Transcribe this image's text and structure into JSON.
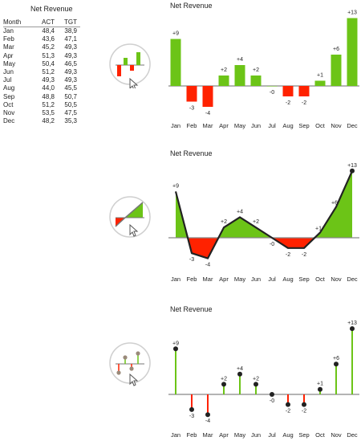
{
  "table": {
    "title": "Net Revenue",
    "headers": [
      "Month",
      "ACT",
      "TGT"
    ],
    "rows": [
      {
        "month": "Jan",
        "act": "48,4",
        "tgt": "38,9"
      },
      {
        "month": "Feb",
        "act": "43,6",
        "tgt": "47,1"
      },
      {
        "month": "Mar",
        "act": "45,2",
        "tgt": "49,3"
      },
      {
        "month": "Apr",
        "act": "51,3",
        "tgt": "49,3"
      },
      {
        "month": "May",
        "act": "50,4",
        "tgt": "46,5"
      },
      {
        "month": "Jun",
        "act": "51,2",
        "tgt": "49,3"
      },
      {
        "month": "Jul",
        "act": "49,3",
        "tgt": "49,3"
      },
      {
        "month": "Aug",
        "act": "44,0",
        "tgt": "45,5"
      },
      {
        "month": "Sep",
        "act": "48,8",
        "tgt": "50,7"
      },
      {
        "month": "Oct",
        "act": "51,2",
        "tgt": "50,5"
      },
      {
        "month": "Nov",
        "act": "53,5",
        "tgt": "47,5"
      },
      {
        "month": "Dec",
        "act": "48,2",
        "tgt": "35,3"
      }
    ]
  },
  "colors": {
    "positive": "#6cc417",
    "negative": "#ff2200",
    "axis": "#888888",
    "line": "#222222",
    "dot": "#222222"
  },
  "icons": [
    "bar-chart-variance-icon",
    "area-chart-variance-icon",
    "pin-chart-variance-icon"
  ],
  "chart_data": [
    {
      "type": "bar",
      "title": "Net Revenue",
      "categories": [
        "Jan",
        "Feb",
        "Mar",
        "Apr",
        "May",
        "Jun",
        "Jul",
        "Aug",
        "Sep",
        "Oct",
        "Nov",
        "Dec"
      ],
      "values": [
        9,
        -3,
        -4,
        2,
        4,
        2,
        0,
        -2,
        -2,
        1,
        6,
        13
      ],
      "labels": [
        "+9",
        "-3",
        "-4",
        "+2",
        "+4",
        "+2",
        "-0",
        "-2",
        "-2",
        "+1",
        "+6",
        "+13"
      ]
    },
    {
      "type": "area",
      "title": "Net Revenue",
      "categories": [
        "Jan",
        "Feb",
        "Mar",
        "Apr",
        "May",
        "Jun",
        "Jul",
        "Aug",
        "Sep",
        "Oct",
        "Nov",
        "Dec"
      ],
      "values": [
        9,
        -3,
        -4,
        2,
        4,
        2,
        0,
        -2,
        -2,
        1,
        6,
        13
      ],
      "labels": [
        "+9",
        "-3",
        "-4",
        "+2",
        "+4",
        "+2",
        "-0",
        "-2",
        "-2",
        "+1",
        "+6",
        "+13"
      ]
    },
    {
      "type": "scatter",
      "title": "Net Revenue",
      "categories": [
        "Jan",
        "Feb",
        "Mar",
        "Apr",
        "May",
        "Jun",
        "Jul",
        "Aug",
        "Sep",
        "Oct",
        "Nov",
        "Dec"
      ],
      "values": [
        9,
        -3,
        -4,
        2,
        4,
        2,
        0,
        -2,
        -2,
        1,
        6,
        13
      ],
      "labels": [
        "+9",
        "-3",
        "-4",
        "+2",
        "+4",
        "+2",
        "-0",
        "-2",
        "-2",
        "+1",
        "+6",
        "+13"
      ]
    }
  ]
}
